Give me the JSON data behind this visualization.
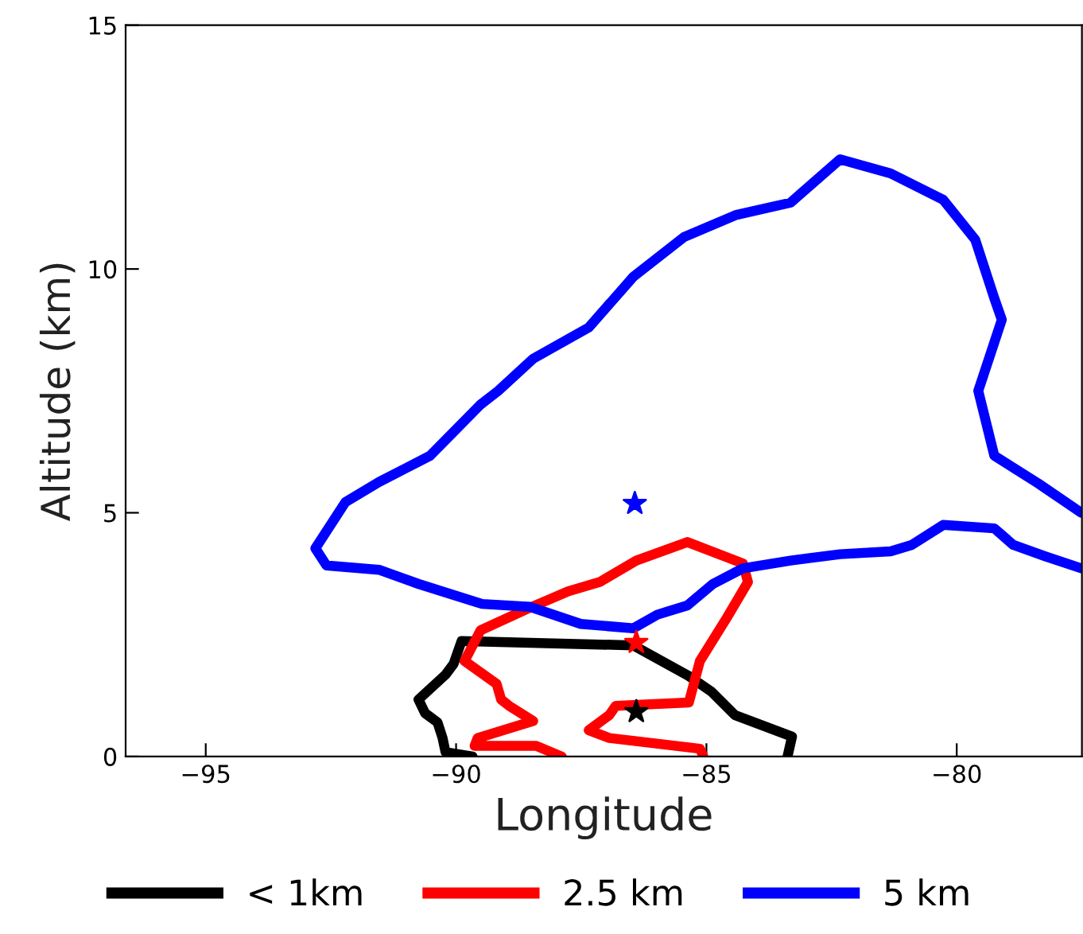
{
  "chart_data": {
    "type": "line",
    "xlabel": "Longitude",
    "ylabel": "Altitude (km)",
    "xlim": [
      -96.6,
      -77.5
    ],
    "ylim": [
      0,
      15
    ],
    "xticks": [
      {
        "value": -95,
        "label": "−95"
      },
      {
        "value": -90,
        "label": "−90"
      },
      {
        "value": -85,
        "label": "−85"
      },
      {
        "value": -80,
        "label": "−80"
      }
    ],
    "yticks": [
      0,
      5,
      10,
      15
    ],
    "grid": false,
    "legend": "bottom",
    "line_style": "solid",
    "series": [
      {
        "name": "< 1km",
        "color": "#000000",
        "x": [
          -89.67,
          -90.21,
          -90.27,
          -90.37,
          -90.62,
          -90.75,
          -90.21,
          -90.05,
          -89.89,
          -86.46,
          -85.35,
          -84.9,
          -84.43,
          -83.29,
          -83.38
        ],
        "values": [
          0.0,
          0.09,
          0.38,
          0.7,
          0.89,
          1.17,
          1.68,
          1.9,
          2.37,
          2.28,
          1.65,
          1.33,
          0.85,
          0.41,
          0.0
        ]
      },
      {
        "name": "2.5 km",
        "color": "#ff0000",
        "x": [
          -87.89,
          -88.4,
          -89.63,
          -89.57,
          -88.46,
          -88.94,
          -89.1,
          -89.19,
          -89.83,
          -89.51,
          -88.62,
          -87.76,
          -87.13,
          -86.4,
          -85.38,
          -84.27,
          -84.17,
          -84.59,
          -85.13,
          -85.35,
          -86.81,
          -86.94,
          -87.35,
          -86.94,
          -85.13,
          -85.06
        ],
        "values": [
          0.0,
          0.22,
          0.22,
          0.38,
          0.73,
          1.04,
          1.17,
          1.49,
          1.96,
          2.59,
          3.01,
          3.39,
          3.58,
          4.02,
          4.4,
          3.96,
          3.58,
          2.85,
          1.96,
          1.11,
          1.04,
          0.85,
          0.54,
          0.38,
          0.16,
          0.0
        ]
      },
      {
        "name": "5 km",
        "color": "#0000ff",
        "x": [
          -77.51,
          -78.37,
          -79.25,
          -79.57,
          -79.1,
          -79.25,
          -79.63,
          -80.27,
          -81.32,
          -82.33,
          -83.32,
          -84.4,
          -85.44,
          -86.46,
          -87.35,
          -88.46,
          -89.16,
          -89.51,
          -90.52,
          -91.54,
          -92.21,
          -92.81,
          -92.59,
          -91.54,
          -90.75,
          -89.48,
          -88.52,
          -87.51,
          -86.46,
          -85.98,
          -85.38,
          -84.87,
          -84.27,
          -83.32,
          -82.33,
          -81.32,
          -80.9,
          -80.27,
          -79.25,
          -78.87,
          -78.24,
          -77.51
        ],
        "values": [
          5.0,
          5.6,
          6.17,
          7.5,
          8.96,
          9.4,
          10.6,
          11.42,
          11.96,
          12.25,
          11.36,
          11.11,
          10.66,
          9.84,
          8.8,
          8.16,
          7.5,
          7.22,
          6.17,
          5.63,
          5.22,
          4.27,
          3.92,
          3.83,
          3.54,
          3.13,
          3.07,
          2.72,
          2.63,
          2.91,
          3.1,
          3.54,
          3.86,
          4.02,
          4.15,
          4.21,
          4.34,
          4.75,
          4.68,
          4.34,
          4.11,
          3.86
        ]
      },
      {
        "type": "scatter",
        "marker": "star",
        "color": "#000000",
        "x": [
          -86.4
        ],
        "values": [
          0.92
        ]
      },
      {
        "type": "scatter",
        "marker": "star",
        "color": "#ff0000",
        "x": [
          -86.4
        ],
        "values": [
          2.34
        ]
      },
      {
        "type": "scatter",
        "marker": "star",
        "color": "#0000ff",
        "x": [
          -86.43
        ],
        "values": [
          5.19
        ]
      }
    ]
  }
}
